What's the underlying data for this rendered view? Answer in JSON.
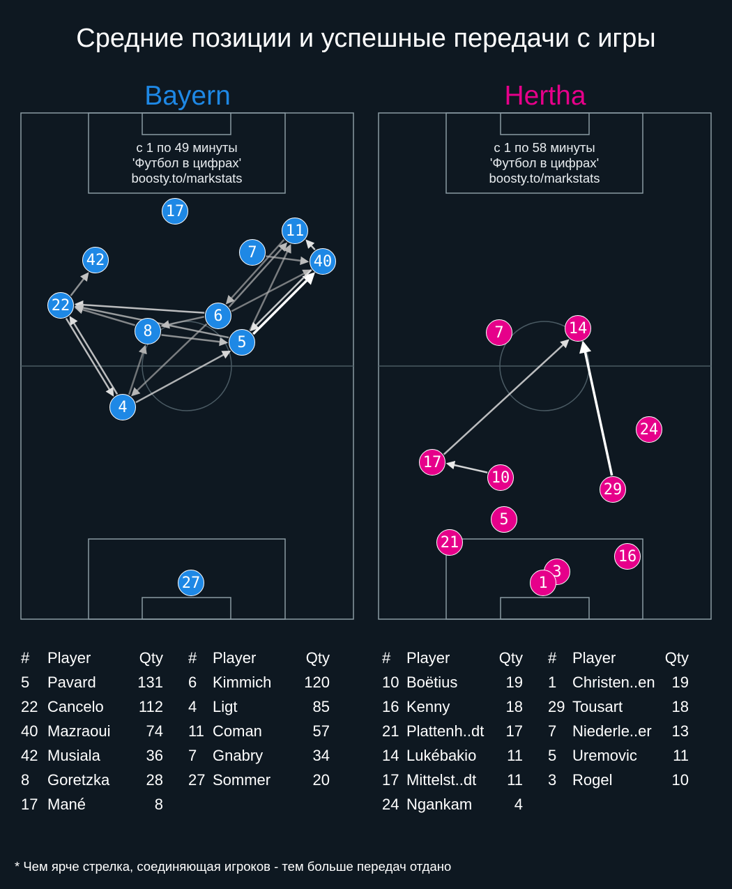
{
  "title": "Средние позиции и успешные передачи с игры",
  "colors": {
    "background": "#0e1821",
    "bayern": "#1e88e5",
    "hertha": "#e6008a",
    "pitch_lines": "#8a9aa3"
  },
  "footnote": "* Чем ярче стрелка, соединяющая игроков - тем больше передач отдано",
  "bayern": {
    "name": "Bayern",
    "caption_line1": "с 1 по 49 минуты",
    "caption_line2": "'Футбол в цифрах'",
    "caption_line3": "boosty.to/markstats",
    "players": [
      {
        "num": "17"
      },
      {
        "num": "11"
      },
      {
        "num": "7"
      },
      {
        "num": "40"
      },
      {
        "num": "42"
      },
      {
        "num": "22"
      },
      {
        "num": "6"
      },
      {
        "num": "8"
      },
      {
        "num": "5"
      },
      {
        "num": "4"
      },
      {
        "num": "27"
      }
    ],
    "passes": [
      {
        "from": "22",
        "to": "42"
      },
      {
        "from": "22",
        "to": "4"
      },
      {
        "from": "4",
        "to": "22"
      },
      {
        "from": "6",
        "to": "22"
      },
      {
        "from": "8",
        "to": "22"
      },
      {
        "from": "5",
        "to": "22"
      },
      {
        "from": "6",
        "to": "8"
      },
      {
        "from": "8",
        "to": "5"
      },
      {
        "from": "4",
        "to": "8"
      },
      {
        "from": "6",
        "to": "4"
      },
      {
        "from": "4",
        "to": "5"
      },
      {
        "from": "6",
        "to": "11"
      },
      {
        "from": "11",
        "to": "6"
      },
      {
        "from": "6",
        "to": "40"
      },
      {
        "from": "5",
        "to": "11"
      },
      {
        "from": "5",
        "to": "40"
      },
      {
        "from": "40",
        "to": "5"
      },
      {
        "from": "7",
        "to": "40"
      },
      {
        "from": "40",
        "to": "11"
      }
    ],
    "table_left": {
      "headers": [
        "#",
        "Player",
        "Qty"
      ],
      "rows": [
        [
          "5",
          "Pavard",
          "131"
        ],
        [
          "22",
          "Cancelo",
          "112"
        ],
        [
          "40",
          "Mazraoui",
          "74"
        ],
        [
          "42",
          "Musiala",
          "36"
        ],
        [
          "8",
          "Goretzka",
          "28"
        ],
        [
          "17",
          "Mané",
          "8"
        ]
      ]
    },
    "table_right": {
      "headers": [
        "#",
        "Player",
        "Qty"
      ],
      "rows": [
        [
          "6",
          "Kimmich",
          "120"
        ],
        [
          "4",
          "Ligt",
          "85"
        ],
        [
          "11",
          "Coman",
          "57"
        ],
        [
          "7",
          "Gnabry",
          "34"
        ],
        [
          "27",
          "Sommer",
          "20"
        ]
      ]
    }
  },
  "hertha": {
    "name": "Hertha",
    "caption_line1": "с 1 по 58 минуты",
    "caption_line2": "'Футбол в цифрах'",
    "caption_line3": "boosty.to/markstats",
    "players": [
      {
        "num": "7"
      },
      {
        "num": "14"
      },
      {
        "num": "24"
      },
      {
        "num": "17"
      },
      {
        "num": "10"
      },
      {
        "num": "29"
      },
      {
        "num": "5"
      },
      {
        "num": "21"
      },
      {
        "num": "16"
      },
      {
        "num": "3"
      },
      {
        "num": "1"
      }
    ],
    "passes": [
      {
        "from": "17",
        "to": "14"
      },
      {
        "from": "29",
        "to": "14"
      },
      {
        "from": "10",
        "to": "17"
      }
    ],
    "table_left": {
      "headers": [
        "#",
        "Player",
        "Qty"
      ],
      "rows": [
        [
          "10",
          "Boëtius",
          "19"
        ],
        [
          "16",
          "Kenny",
          "18"
        ],
        [
          "21",
          "Plattenh..dt",
          "17"
        ],
        [
          "14",
          "Lukébakio",
          "11"
        ],
        [
          "17",
          "Mittelst..dt",
          "11"
        ],
        [
          "24",
          "Ngankam",
          "4"
        ]
      ]
    },
    "table_right": {
      "headers": [
        "#",
        "Player",
        "Qty"
      ],
      "rows": [
        [
          "1",
          "Christen..en",
          "19"
        ],
        [
          "29",
          "Tousart",
          "18"
        ],
        [
          "7",
          "Niederle..er",
          "13"
        ],
        [
          "5",
          "Uremovic",
          "11"
        ],
        [
          "3",
          "Rogel",
          "10"
        ]
      ]
    }
  }
}
